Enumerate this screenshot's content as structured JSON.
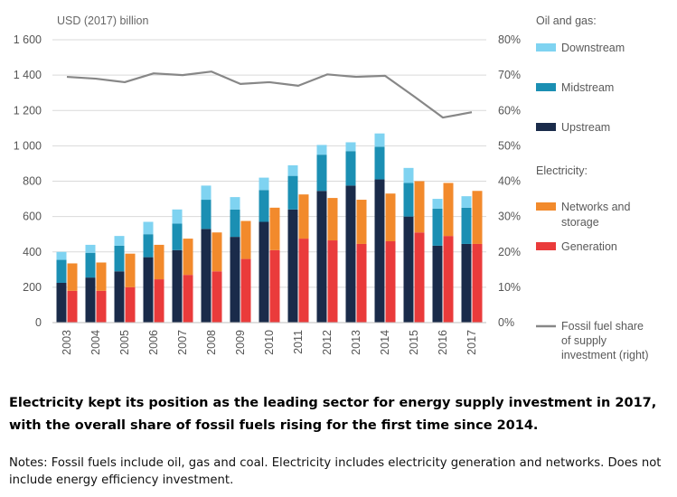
{
  "chart_data": {
    "type": "bar",
    "title": "",
    "ylabel": "USD (2017) billion",
    "ylim": [
      0,
      1600
    ],
    "yticks": [
      0,
      200,
      400,
      600,
      800,
      1000,
      1200,
      1400,
      1600
    ],
    "ytick_labels": [
      "0",
      "200",
      "400",
      "600",
      "800",
      "1 000",
      "1 200",
      "1 400",
      "1 600"
    ],
    "y2lim": [
      0,
      80
    ],
    "y2ticks": [
      0,
      10,
      20,
      30,
      40,
      50,
      60,
      70,
      80
    ],
    "y2tick_labels": [
      "0%",
      "10%",
      "20%",
      "30%",
      "40%",
      "50%",
      "60%",
      "70%",
      "80%"
    ],
    "grid": true,
    "legend_position": "right",
    "categories": [
      "2003",
      "2004",
      "2005",
      "2006",
      "2007",
      "2008",
      "2009",
      "2010",
      "2011",
      "2012",
      "2013",
      "2014",
      "2015",
      "2016",
      "2017"
    ],
    "groups": [
      {
        "name": "Oil and gas:",
        "stacked": true,
        "series": [
          {
            "name": "Upstream",
            "color": "#1a2b4a",
            "values": [
              225,
              255,
              290,
              370,
              410,
              530,
              485,
              570,
              640,
              745,
              775,
              810,
              600,
              435,
              445
            ]
          },
          {
            "name": "Midstream",
            "color": "#1b8fb3",
            "values": [
              130,
              140,
              145,
              130,
              150,
              165,
              155,
              180,
              190,
              205,
              195,
              185,
              190,
              210,
              205
            ]
          },
          {
            "name": "Downstream",
            "color": "#7fd3f1",
            "values": [
              45,
              45,
              55,
              70,
              80,
              80,
              70,
              70,
              60,
              55,
              50,
              75,
              85,
              55,
              65
            ]
          }
        ]
      },
      {
        "name": "Electricity:",
        "stacked": true,
        "series": [
          {
            "name": "Generation",
            "color": "#ea3b3b",
            "values": [
              180,
              180,
              200,
              245,
              270,
              290,
              360,
              410,
              475,
              465,
              445,
              460,
              510,
              490,
              445
            ]
          },
          {
            "name": "Networks and storage",
            "color": "#f28a2c",
            "values": [
              155,
              160,
              190,
              195,
              205,
              220,
              215,
              240,
              250,
              240,
              250,
              270,
              290,
              300,
              300
            ]
          }
        ]
      }
    ],
    "line_series": {
      "name": "Fossil fuel share of supply investment (right)",
      "axis": "right",
      "color": "#878787",
      "values": [
        69.5,
        69,
        68,
        70.5,
        70,
        71,
        67.5,
        68,
        67,
        70.2,
        69.5,
        69.8,
        64,
        58,
        59.5
      ]
    }
  },
  "caption": "Electricity kept its position as the leading sector for energy supply investment in 2017, with the overall share of fossil fuels rising for the first time since 2014.",
  "notes": "Notes: Fossil fuels include oil, gas and coal. Electricity includes electricity generation and networks. Does not include energy efficiency investment."
}
